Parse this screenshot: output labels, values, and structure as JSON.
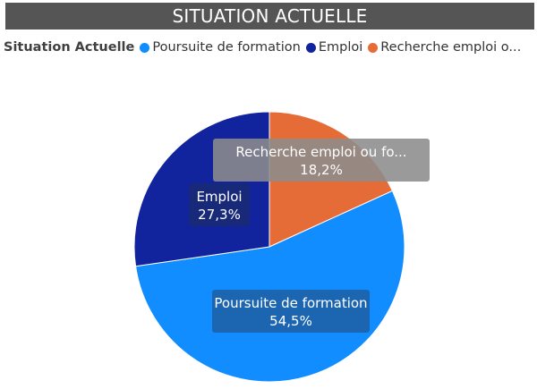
{
  "header": {
    "title": "SITUATION ACTUELLE"
  },
  "legend": {
    "title": "Situation Actuelle",
    "items": [
      {
        "label": "Poursuite de formation",
        "color": "#118DFF"
      },
      {
        "label": "Emploi",
        "color": "#12239E"
      },
      {
        "label": "Recherche emploi o...",
        "color": "#E66C37"
      }
    ]
  },
  "chart_data": {
    "type": "pie",
    "title": "SITUATION ACTUELLE",
    "legend_title": "Situation Actuelle",
    "legend_position": "top-left",
    "start": "top, clockwise",
    "slices": [
      {
        "name": "Recherche emploi ou formation",
        "label": "Recherche emploi ou fo...",
        "value": 18.2,
        "value_label": "18,2%",
        "color": "#E66C37"
      },
      {
        "name": "Poursuite de formation",
        "label": "Poursuite de formation",
        "value": 54.5,
        "value_label": "54,5%",
        "color": "#118DFF"
      },
      {
        "name": "Emploi",
        "label": "Emploi",
        "value": 27.3,
        "value_label": "27,3%",
        "color": "#12239E"
      }
    ]
  }
}
